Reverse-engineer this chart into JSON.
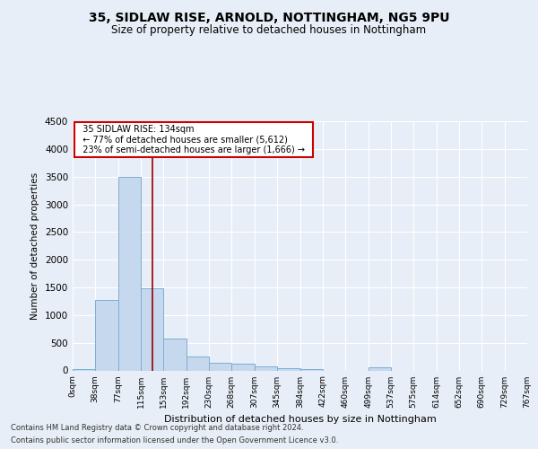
{
  "title1": "35, SIDLAW RISE, ARNOLD, NOTTINGHAM, NG5 9PU",
  "title2": "Size of property relative to detached houses in Nottingham",
  "xlabel": "Distribution of detached houses by size in Nottingham",
  "ylabel": "Number of detached properties",
  "footer1": "Contains HM Land Registry data © Crown copyright and database right 2024.",
  "footer2": "Contains public sector information licensed under the Open Government Licence v3.0.",
  "annotation_title": "35 SIDLAW RISE: 134sqm",
  "annotation_line1": "← 77% of detached houses are smaller (5,612)",
  "annotation_line2": "23% of semi-detached houses are larger (1,666) →",
  "property_size": 134,
  "bar_edges": [
    0,
    38,
    77,
    115,
    153,
    192,
    230,
    268,
    307,
    345,
    384,
    422,
    460,
    499,
    537,
    575,
    614,
    652,
    690,
    729,
    767
  ],
  "bar_values": [
    30,
    1270,
    3500,
    1480,
    580,
    250,
    130,
    120,
    70,
    45,
    25,
    0,
    0,
    50,
    0,
    0,
    0,
    0,
    0,
    0
  ],
  "bar_color": "#c5d8ee",
  "bar_edge_color": "#7bafd4",
  "vline_color": "#990000",
  "vline_x": 134,
  "annotation_box_color": "#ffffff",
  "annotation_box_edge_color": "#cc0000",
  "ylim": [
    0,
    4500
  ],
  "yticks": [
    0,
    500,
    1000,
    1500,
    2000,
    2500,
    3000,
    3500,
    4000,
    4500
  ],
  "bg_color": "#e8eef7",
  "plot_bg_color": "#e8eef7",
  "grid_color": "#ffffff"
}
